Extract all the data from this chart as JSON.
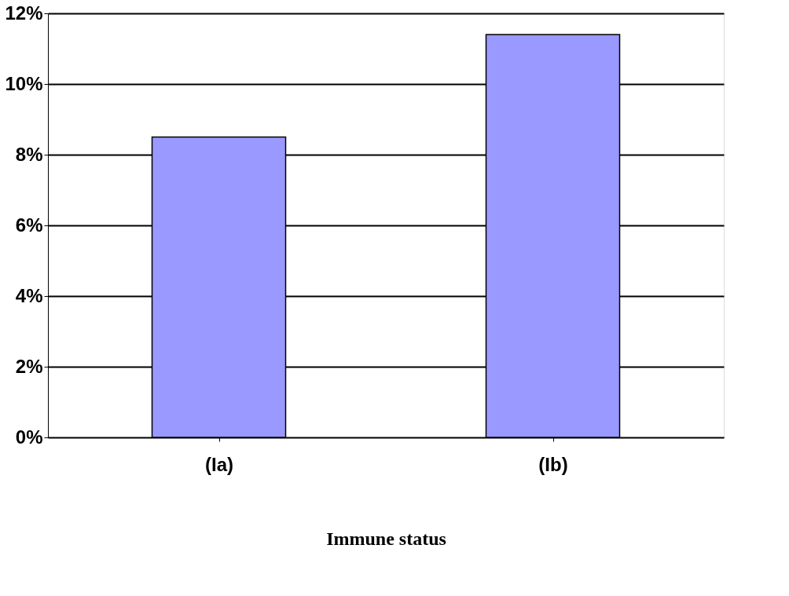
{
  "chart_data": {
    "type": "bar",
    "xlabel": "Immune status",
    "categories": [
      "(Ia)",
      "(Ib)"
    ],
    "series": [
      {
        "color": "#9999ff",
        "values": [
          8.5,
          11.4
        ]
      }
    ],
    "ylim": [
      0,
      12
    ],
    "yticks": [
      {
        "value": 0,
        "label": "0%"
      },
      {
        "value": 2,
        "label": "2%"
      },
      {
        "value": 4,
        "label": "4%"
      },
      {
        "value": 6,
        "label": "6%"
      },
      {
        "value": 8,
        "label": "8%"
      },
      {
        "value": 10,
        "label": "10%"
      },
      {
        "value": 12,
        "label": "12%"
      }
    ],
    "grid": "y",
    "legend": false
  }
}
